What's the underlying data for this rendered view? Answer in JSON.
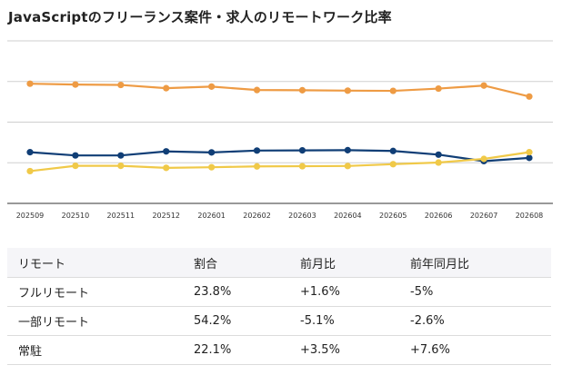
{
  "title": "JavaScriptのフリーランス案件・求人のリモートワーク比率",
  "chart_data": {
    "type": "line",
    "title": "JavaScriptのフリーランス案件・求人のリモートワーク比率",
    "categories": [
      "202509",
      "202510",
      "202511",
      "202512",
      "202601",
      "202602",
      "202603",
      "202604",
      "202605",
      "202606",
      "202607",
      "202608"
    ],
    "series": [
      {
        "color": "#ee9b44",
        "values": [
          58.9,
          58.5,
          58.3,
          56.7,
          57.5,
          55.8,
          55.7,
          55.5,
          55.4,
          56.5,
          58.0,
          52.6
        ]
      },
      {
        "color": "#103e76",
        "values": [
          25.2,
          23.6,
          23.6,
          25.6,
          25.1,
          26.0,
          26.1,
          26.2,
          25.8,
          24.0,
          20.8,
          22.4
        ]
      },
      {
        "color": "#f0c948",
        "values": [
          15.9,
          18.5,
          18.5,
          17.5,
          17.8,
          18.2,
          18.3,
          18.4,
          19.3,
          20.1,
          21.9,
          25.2
        ]
      }
    ],
    "ylim": [
      0,
      80
    ],
    "grid": true,
    "legend": "none"
  },
  "table": {
    "headers": [
      "リモート",
      "割合",
      "前月比",
      "前年同月比"
    ],
    "rows": [
      [
        "フルリモート",
        "23.8%",
        "+1.6%",
        "-5%"
      ],
      [
        "一部リモート",
        "54.2%",
        "-5.1%",
        "-2.6%"
      ],
      [
        "常駐",
        "22.1%",
        "+3.5%",
        "+7.6%"
      ]
    ]
  }
}
